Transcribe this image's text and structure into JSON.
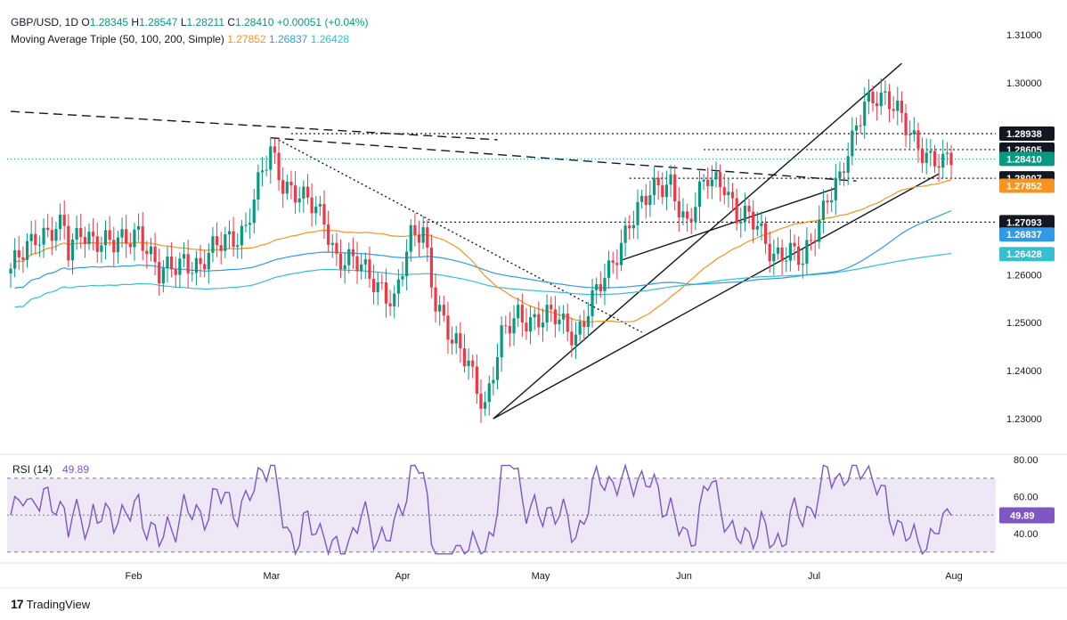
{
  "header": {
    "symbol": "GBP/USD, 1D",
    "ohlc": [
      {
        "k": "O",
        "v": "1.28345"
      },
      {
        "k": "H",
        "v": "1.28547"
      },
      {
        "k": "L",
        "v": "1.28211"
      },
      {
        "k": "C",
        "v": "1.28410"
      }
    ],
    "change": "+0.00051 (+0.04%)",
    "ma_label": "Moving Average Triple (50, 100, 200, Simple)",
    "ma_values": [
      "1.27852",
      "1.26837",
      "1.26428"
    ]
  },
  "colors": {
    "up": "#089981",
    "down": "#f23645",
    "ma50": "#f7931e",
    "ma100": "#2f9be8",
    "ma200": "#34c0d0",
    "rsi": "#7e57c2",
    "rsi_band": "#ede7f6",
    "text": "#131722",
    "tag_dark": "#131722"
  },
  "price_axis": {
    "ticks": [
      "1.31000",
      "1.30000",
      "1.29000",
      "1.28000",
      "1.27000",
      "1.26000",
      "1.25000",
      "1.24000",
      "1.23000"
    ],
    "range": [
      1.2235,
      1.3135
    ],
    "labels": [
      {
        "text": "1.28938",
        "value": 1.28938,
        "style": "dark"
      },
      {
        "text": "1.28605",
        "value": 1.28605,
        "style": "dark"
      },
      {
        "text": "1.28410",
        "value": 1.2841,
        "style": "up"
      },
      {
        "text": "1.28007",
        "value": 1.28007,
        "style": "dark"
      },
      {
        "text": "1.27852",
        "value": 1.27852,
        "style": "ma50"
      },
      {
        "text": "1.27093",
        "value": 1.27093,
        "style": "dark"
      },
      {
        "text": "1.26837",
        "value": 1.26837,
        "style": "ma100"
      },
      {
        "text": "1.26428",
        "value": 1.26428,
        "style": "ma200"
      }
    ]
  },
  "time_axis": [
    "Feb",
    "Mar",
    "Apr",
    "May",
    "Jun",
    "Jul",
    "Aug"
  ],
  "rsi": {
    "label": "RSI (14)",
    "value": "49.89",
    "ticks": [
      "80.00",
      "60.00",
      "40.00"
    ],
    "range": [
      26,
      82
    ]
  },
  "brand": {
    "name": "TradingView"
  },
  "chart_data": {
    "type": "candlestick",
    "series": [
      {
        "name": "GBP/USD",
        "type": "candlestick"
      },
      {
        "name": "50",
        "type": "line"
      },
      {
        "name": "100",
        "type": "line"
      },
      {
        "name": "200",
        "type": "line"
      },
      {
        "name": "RSI (14)",
        "type": "line"
      }
    ],
    "horizontal_levels": [
      1.28938,
      1.28605,
      1.28007,
      1.27093
    ],
    "ylim": [
      1.2235,
      1.3135
    ],
    "grid": false
  }
}
